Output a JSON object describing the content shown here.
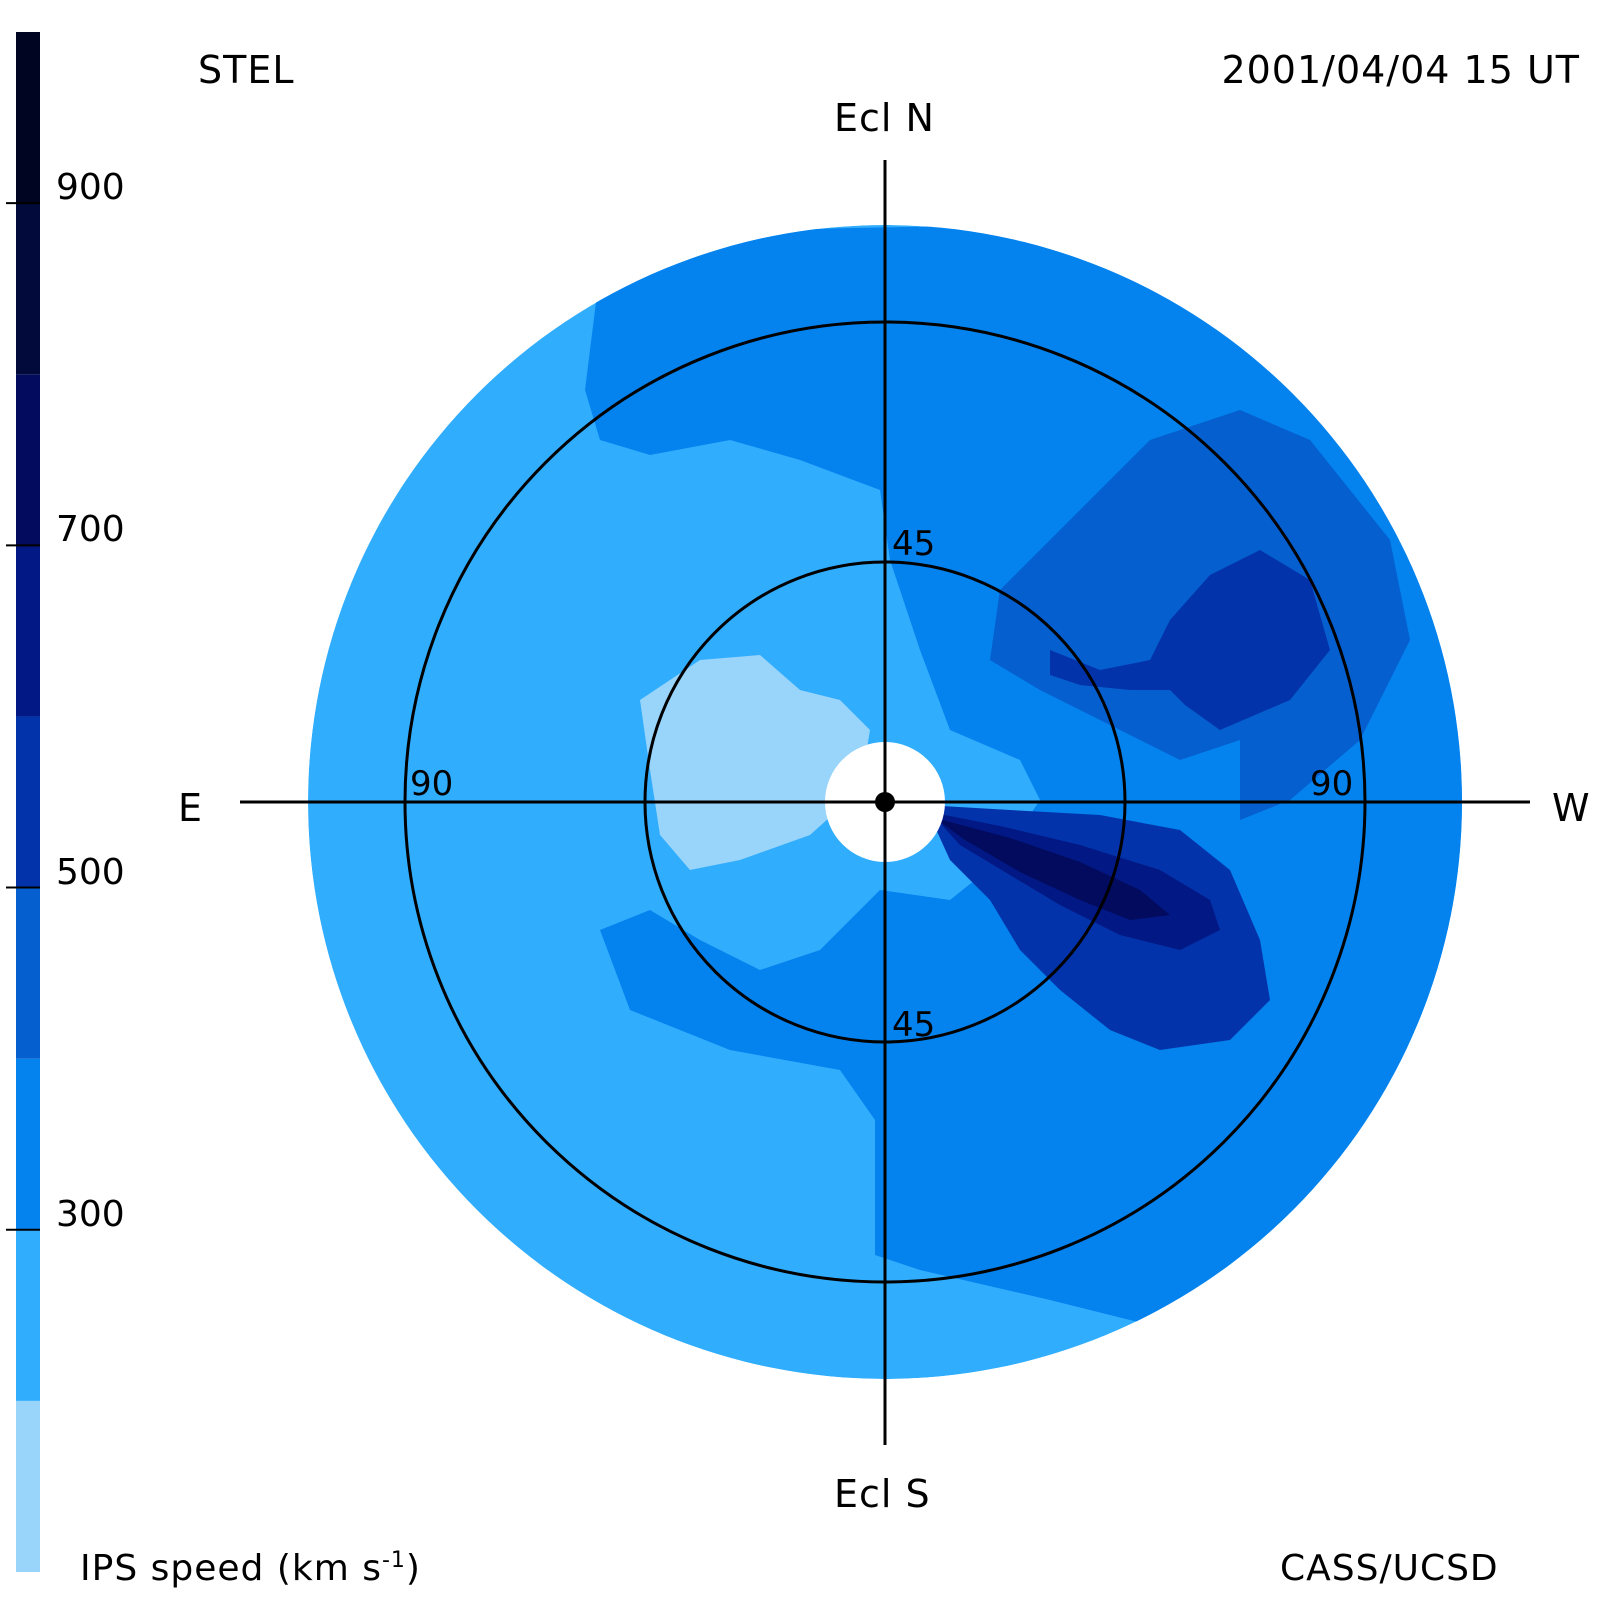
{
  "header": {
    "source": "STEL",
    "timestamp": "2001/04/04 15 UT"
  },
  "directions": {
    "north": "Ecl N",
    "south": "Ecl S",
    "east": "E",
    "west": "W"
  },
  "footer": {
    "colorbar_title": "IPS speed (km s",
    "colorbar_title_exp": "-1",
    "colorbar_title_end": ")",
    "credit": "CASS/UCSD"
  },
  "chart_data": {
    "type": "heatmap",
    "projection": "sky map centered on the Sun, radial distance = elongation",
    "elongation_rings": [
      45,
      90
    ],
    "ring_labels": {
      "north_45": "45",
      "south_45": "45",
      "east_90": "90",
      "west_90": "90"
    },
    "colorbar": {
      "range": [
        100,
        1000
      ],
      "ticks": [
        "300",
        "500",
        "700",
        "900"
      ],
      "tick_values": [
        300,
        500,
        700,
        900
      ],
      "bands": [
        {
          "from": 100,
          "to": 200,
          "color": "#99d4fa"
        },
        {
          "from": 200,
          "to": 300,
          "color": "#31adfe"
        },
        {
          "from": 300,
          "to": 400,
          "color": "#0482ee"
        },
        {
          "from": 400,
          "to": 500,
          "color": "#055fcf"
        },
        {
          "from": 500,
          "to": 600,
          "color": "#0333aa"
        },
        {
          "from": 600,
          "to": 700,
          "color": "#021884"
        },
        {
          "from": 700,
          "to": 800,
          "color": "#020b5d"
        },
        {
          "from": 800,
          "to": 900,
          "color": "#010a3a"
        },
        {
          "from": 900,
          "to": 1000,
          "color": "#000522"
        }
      ]
    },
    "speed_regions": [
      {
        "name": "slow-wind-east-of-sun",
        "speed_band": [
          100,
          200
        ]
      },
      {
        "name": "north-band",
        "speed_band": [
          300,
          400
        ]
      },
      {
        "name": "south-west-quadrant",
        "speed_band": [
          300,
          400
        ]
      },
      {
        "name": "north-west-lobe",
        "speed_band": [
          400,
          500
        ]
      },
      {
        "name": "north-west-core",
        "speed_band": [
          500,
          600
        ]
      },
      {
        "name": "south-west-lobe",
        "speed_band": [
          500,
          600
        ]
      },
      {
        "name": "south-west-core",
        "speed_band": [
          600,
          700
        ]
      },
      {
        "name": "south-west-jet",
        "speed_band": [
          700,
          800
        ]
      }
    ]
  }
}
